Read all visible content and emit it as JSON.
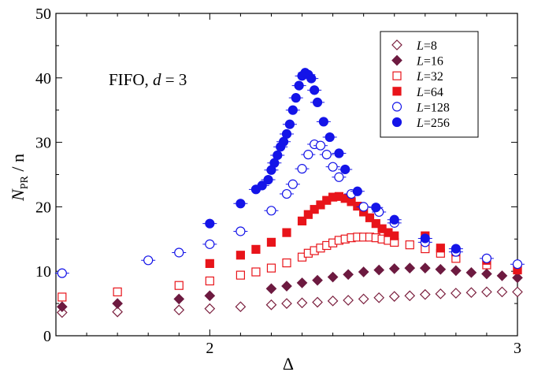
{
  "chart_data": {
    "type": "scatter",
    "title": "",
    "annotation": {
      "prefix": "FIFO, ",
      "var": "d",
      "suffix": " = 3"
    },
    "xlabel": "Δ",
    "ylabel": {
      "main": "N",
      "sub": "PR",
      "rest": " / n"
    },
    "xlim": [
      1.5,
      3.0
    ],
    "ylim": [
      0,
      50
    ],
    "x_ticks": [
      2,
      3
    ],
    "x_tick_labels": [
      "2",
      "3"
    ],
    "y_ticks": [
      0,
      10,
      20,
      30,
      40,
      50
    ],
    "y_tick_labels": [
      "0",
      "10",
      "20",
      "30",
      "40",
      "50"
    ],
    "legend_position": "top-right",
    "series": [
      {
        "name": "L=8",
        "legend_var": "L",
        "legend_val": "8",
        "marker": "diamond",
        "filled": false,
        "color": "#7b1f3e",
        "points": [
          [
            1.52,
            3.6
          ],
          [
            1.7,
            3.7
          ],
          [
            1.9,
            4.0
          ],
          [
            2.0,
            4.2
          ],
          [
            2.1,
            4.5
          ],
          [
            2.2,
            4.8
          ],
          [
            2.25,
            5.0
          ],
          [
            2.3,
            5.1
          ],
          [
            2.35,
            5.2
          ],
          [
            2.4,
            5.4
          ],
          [
            2.45,
            5.5
          ],
          [
            2.5,
            5.7
          ],
          [
            2.55,
            5.9
          ],
          [
            2.6,
            6.1
          ],
          [
            2.65,
            6.2
          ],
          [
            2.7,
            6.4
          ],
          [
            2.75,
            6.5
          ],
          [
            2.8,
            6.6
          ],
          [
            2.85,
            6.7
          ],
          [
            2.9,
            6.8
          ],
          [
            2.95,
            6.8
          ],
          [
            3.0,
            6.8
          ]
        ]
      },
      {
        "name": "L=16",
        "legend_var": "L",
        "legend_val": "16",
        "marker": "diamond",
        "filled": true,
        "color": "#6d1a40",
        "points": [
          [
            1.52,
            4.5
          ],
          [
            1.7,
            5.0
          ],
          [
            1.9,
            5.7
          ],
          [
            2.0,
            6.2
          ],
          [
            2.2,
            7.3
          ],
          [
            2.25,
            7.7
          ],
          [
            2.3,
            8.2
          ],
          [
            2.35,
            8.6
          ],
          [
            2.4,
            9.1
          ],
          [
            2.45,
            9.5
          ],
          [
            2.5,
            9.9
          ],
          [
            2.55,
            10.2
          ],
          [
            2.6,
            10.4
          ],
          [
            2.65,
            10.5
          ],
          [
            2.7,
            10.5
          ],
          [
            2.75,
            10.3
          ],
          [
            2.8,
            10.1
          ],
          [
            2.85,
            9.8
          ],
          [
            2.9,
            9.6
          ],
          [
            2.95,
            9.3
          ],
          [
            3.0,
            9.0
          ]
        ]
      },
      {
        "name": "L=32",
        "legend_var": "L",
        "legend_val": "32",
        "marker": "square",
        "filled": false,
        "color": "#e8141a",
        "points": [
          [
            1.52,
            6.0
          ],
          [
            1.7,
            6.8
          ],
          [
            1.9,
            7.8
          ],
          [
            2.0,
            8.5
          ],
          [
            2.1,
            9.4
          ],
          [
            2.15,
            9.9
          ],
          [
            2.2,
            10.5
          ],
          [
            2.25,
            11.3
          ],
          [
            2.3,
            12.2
          ],
          [
            2.32,
            12.8
          ],
          [
            2.34,
            13.2
          ],
          [
            2.36,
            13.6
          ],
          [
            2.38,
            14.0
          ],
          [
            2.4,
            14.4
          ],
          [
            2.42,
            14.8
          ],
          [
            2.44,
            15.0
          ],
          [
            2.46,
            15.2
          ],
          [
            2.48,
            15.3
          ],
          [
            2.5,
            15.3
          ],
          [
            2.52,
            15.3
          ],
          [
            2.54,
            15.2
          ],
          [
            2.56,
            15.0
          ],
          [
            2.58,
            14.8
          ],
          [
            2.6,
            14.5
          ],
          [
            2.65,
            14.1
          ],
          [
            2.7,
            13.5
          ],
          [
            2.75,
            12.8
          ],
          [
            2.8,
            12.0
          ],
          [
            2.9,
            11.0
          ],
          [
            3.0,
            10.3
          ]
        ]
      },
      {
        "name": "L=64",
        "legend_var": "L",
        "legend_val": "64",
        "marker": "square",
        "filled": true,
        "color": "#e8141a",
        "points": [
          [
            2.0,
            11.2
          ],
          [
            2.1,
            12.5
          ],
          [
            2.15,
            13.4
          ],
          [
            2.2,
            14.5
          ],
          [
            2.25,
            16.0
          ],
          [
            2.3,
            17.8
          ],
          [
            2.32,
            18.8
          ],
          [
            2.34,
            19.6
          ],
          [
            2.36,
            20.3
          ],
          [
            2.38,
            21.0
          ],
          [
            2.4,
            21.5
          ],
          [
            2.42,
            21.6
          ],
          [
            2.44,
            21.3
          ],
          [
            2.46,
            20.8
          ],
          [
            2.48,
            20.1
          ],
          [
            2.5,
            19.2
          ],
          [
            2.52,
            18.3
          ],
          [
            2.54,
            17.4
          ],
          [
            2.56,
            16.6
          ],
          [
            2.58,
            16.0
          ],
          [
            2.6,
            15.5
          ],
          [
            2.7,
            15.5
          ],
          [
            2.75,
            13.6
          ],
          [
            2.8,
            13.0
          ],
          [
            2.9,
            11.7
          ],
          [
            3.0,
            10.2
          ]
        ]
      },
      {
        "name": "L=128",
        "legend_var": "L",
        "legend_val": "128",
        "marker": "circle",
        "filled": false,
        "color": "#1414e8",
        "points": [
          [
            1.52,
            9.7
          ],
          [
            1.8,
            11.7
          ],
          [
            1.9,
            12.9
          ],
          [
            2.0,
            14.2
          ],
          [
            2.1,
            16.2
          ],
          [
            2.2,
            19.4
          ],
          [
            2.25,
            22.0
          ],
          [
            2.27,
            23.5
          ],
          [
            2.3,
            25.9
          ],
          [
            2.32,
            28.1
          ],
          [
            2.34,
            29.7
          ],
          [
            2.36,
            29.5
          ],
          [
            2.38,
            28.1
          ],
          [
            2.4,
            26.2
          ],
          [
            2.42,
            24.6
          ],
          [
            2.46,
            22.0
          ],
          [
            2.5,
            20.0
          ],
          [
            2.55,
            19.2
          ],
          [
            2.6,
            17.5
          ],
          [
            2.7,
            14.5
          ],
          [
            2.8,
            13.0
          ],
          [
            2.9,
            12.0
          ],
          [
            3.0,
            11.1
          ]
        ]
      },
      {
        "name": "L=256",
        "legend_var": "L",
        "legend_val": "256",
        "marker": "circle",
        "filled": true,
        "color": "#1414e8",
        "points": [
          [
            2.0,
            17.4
          ],
          [
            2.1,
            20.5
          ],
          [
            2.15,
            22.7
          ],
          [
            2.17,
            23.3
          ],
          [
            2.19,
            24.2
          ],
          [
            2.2,
            25.7
          ],
          [
            2.21,
            26.8
          ],
          [
            2.22,
            28.0
          ],
          [
            2.23,
            29.3
          ],
          [
            2.24,
            30.1
          ],
          [
            2.25,
            31.3
          ],
          [
            2.26,
            32.8
          ],
          [
            2.27,
            35.0
          ],
          [
            2.28,
            36.9
          ],
          [
            2.29,
            38.8
          ],
          [
            2.3,
            40.3
          ],
          [
            2.31,
            40.8
          ],
          [
            2.32,
            40.5
          ],
          [
            2.33,
            39.9
          ],
          [
            2.34,
            38.1
          ],
          [
            2.35,
            36.2
          ],
          [
            2.37,
            33.2
          ],
          [
            2.39,
            30.8
          ],
          [
            2.42,
            28.3
          ],
          [
            2.44,
            25.8
          ],
          [
            2.48,
            22.4
          ],
          [
            2.54,
            19.9
          ],
          [
            2.6,
            18.0
          ],
          [
            2.7,
            15.1
          ],
          [
            2.8,
            13.5
          ]
        ]
      }
    ]
  }
}
